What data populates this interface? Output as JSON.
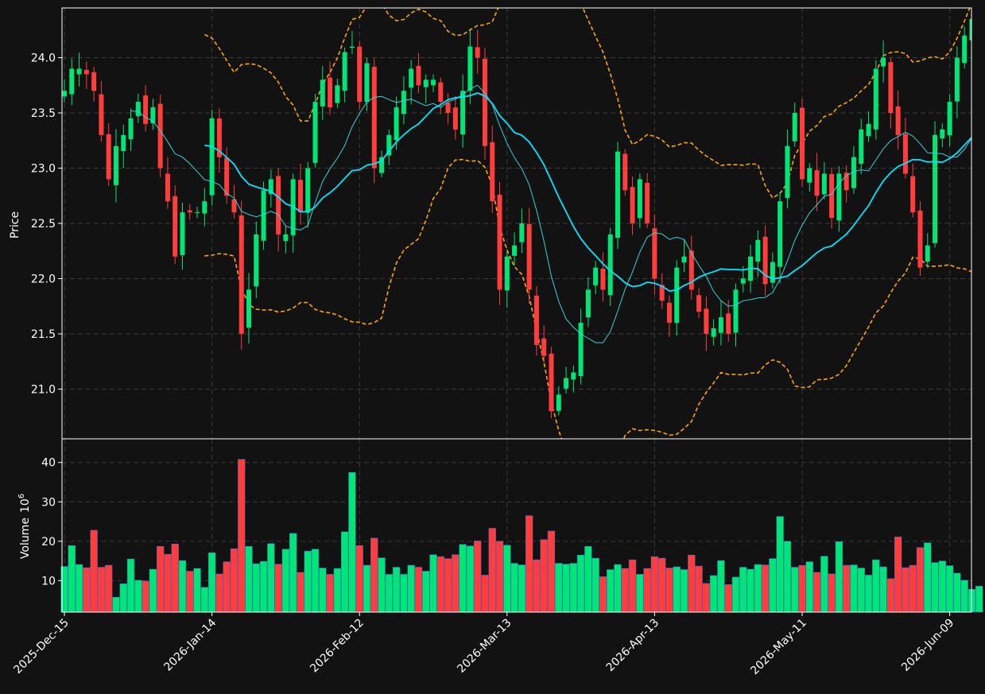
{
  "chart_data": [
    {
      "type": "candlestick",
      "panel": "price",
      "ylabel": "Price",
      "ylim": [
        20.55,
        24.45
      ],
      "yticks": [
        21.0,
        21.5,
        22.0,
        22.5,
        23.0,
        23.5,
        24.0
      ],
      "ytick_labels": [
        "21.0",
        "21.5",
        "22.0",
        "22.5",
        "23.0",
        "23.5",
        "24.0"
      ],
      "grid": true,
      "start_date": "2025-12-15",
      "session_count": 125,
      "colors": {
        "up": "#00e676",
        "down": "#ff3d3d",
        "ma_fast": "#39d0d8",
        "ma_slow": "#00e5ff",
        "bands": "#ffa500",
        "background": "#121212",
        "grid": "#3a3a3a"
      },
      "close_trace": [
        [
          0,
          23.7
        ],
        [
          1,
          23.9
        ],
        [
          2,
          23.9
        ],
        [
          3,
          23.85
        ],
        [
          4,
          23.7
        ],
        [
          5,
          23.3
        ],
        [
          6,
          22.9
        ],
        [
          7,
          23.2
        ],
        [
          8,
          23.3
        ],
        [
          9,
          23.45
        ],
        [
          10,
          23.6
        ],
        [
          11,
          23.4
        ],
        [
          12,
          23.55
        ],
        [
          13,
          23.0
        ],
        [
          14,
          22.7
        ],
        [
          15,
          22.2
        ],
        [
          16,
          22.6
        ],
        [
          17,
          22.6
        ],
        [
          18,
          22.6
        ],
        [
          19,
          22.7
        ],
        [
          20,
          23.45
        ],
        [
          21,
          23.1
        ],
        [
          22,
          22.75
        ],
        [
          23,
          22.6
        ],
        [
          24,
          21.5
        ],
        [
          25,
          21.9
        ],
        [
          26,
          22.4
        ],
        [
          27,
          22.8
        ],
        [
          28,
          22.9
        ],
        [
          29,
          22.4
        ],
        [
          30,
          22.4
        ],
        [
          31,
          22.9
        ],
        [
          32,
          22.6
        ],
        [
          33,
          23.0
        ],
        [
          34,
          23.6
        ],
        [
          35,
          23.8
        ],
        [
          36,
          23.55
        ],
        [
          37,
          23.75
        ],
        [
          38,
          24.05
        ],
        [
          39,
          24.1
        ],
        [
          40,
          23.6
        ],
        [
          41,
          23.95
        ],
        [
          42,
          23.0
        ],
        [
          43,
          23.1
        ],
        [
          44,
          23.3
        ],
        [
          45,
          23.55
        ],
        [
          46,
          23.7
        ],
        [
          47,
          23.9
        ],
        [
          48,
          23.75
        ],
        [
          49,
          23.8
        ],
        [
          50,
          23.8
        ],
        [
          51,
          23.6
        ],
        [
          52,
          23.5
        ],
        [
          53,
          23.35
        ],
        [
          54,
          23.7
        ],
        [
          55,
          24.1
        ],
        [
          56,
          24.0
        ],
        [
          57,
          23.2
        ],
        [
          58,
          22.7
        ],
        [
          59,
          21.9
        ],
        [
          60,
          22.2
        ],
        [
          61,
          22.3
        ],
        [
          62,
          22.5
        ],
        [
          63,
          21.9
        ],
        [
          64,
          21.4
        ],
        [
          65,
          21.3
        ],
        [
          66,
          20.8
        ],
        [
          67,
          20.95
        ],
        [
          68,
          21.1
        ],
        [
          69,
          21.15
        ],
        [
          70,
          21.6
        ],
        [
          71,
          21.9
        ],
        [
          72,
          22.1
        ],
        [
          73,
          21.9
        ],
        [
          74,
          22.4
        ],
        [
          75,
          23.15
        ],
        [
          76,
          22.8
        ],
        [
          77,
          22.5
        ],
        [
          78,
          22.9
        ],
        [
          79,
          22.5
        ],
        [
          80,
          22.0
        ],
        [
          81,
          21.8
        ],
        [
          82,
          21.6
        ],
        [
          83,
          22.1
        ],
        [
          84,
          22.2
        ],
        [
          85,
          21.9
        ],
        [
          86,
          21.7
        ],
        [
          87,
          21.5
        ],
        [
          88,
          21.55
        ],
        [
          89,
          21.65
        ],
        [
          90,
          21.5
        ],
        [
          91,
          21.9
        ],
        [
          92,
          22.0
        ],
        [
          93,
          22.2
        ],
        [
          94,
          22.35
        ],
        [
          95,
          21.95
        ],
        [
          96,
          22.15
        ],
        [
          97,
          22.7
        ],
        [
          98,
          23.2
        ],
        [
          99,
          23.5
        ],
        [
          100,
          22.9
        ],
        [
          101,
          23.0
        ],
        [
          102,
          22.75
        ],
        [
          103,
          22.95
        ],
        [
          104,
          22.55
        ],
        [
          105,
          22.95
        ],
        [
          106,
          22.8
        ],
        [
          107,
          23.1
        ],
        [
          108,
          23.35
        ],
        [
          109,
          23.4
        ],
        [
          110,
          23.9
        ],
        [
          111,
          24.0
        ],
        [
          112,
          23.5
        ],
        [
          113,
          23.3
        ],
        [
          114,
          22.95
        ],
        [
          115,
          22.6
        ],
        [
          116,
          22.1
        ],
        [
          117,
          22.3
        ],
        [
          118,
          23.3
        ],
        [
          119,
          23.35
        ],
        [
          120,
          23.6
        ],
        [
          121,
          24.0
        ],
        [
          122,
          24.2
        ],
        [
          123,
          24.35
        ],
        [
          124,
          24.4
        ]
      ]
    },
    {
      "type": "bar",
      "panel": "volume",
      "ylabel": "Volume",
      "yunit": "10^6",
      "ylim": [
        2,
        46
      ],
      "yticks": [
        10,
        20,
        30,
        40
      ],
      "ytick_labels": [
        "10",
        "20",
        "30",
        "40"
      ],
      "grid": true,
      "values": [
        13.6,
        18.9,
        14.1,
        13.3,
        22.8,
        13.4,
        13.9,
        5.8,
        9.2,
        15.5,
        10.1,
        9.9,
        12.9,
        18.7,
        16.7,
        19.3,
        15.1,
        12.4,
        13.1,
        8.3,
        17.1,
        11.7,
        14.8,
        18.1,
        40.8,
        18.7,
        14.3,
        14.9,
        19.4,
        14.2,
        18.0,
        22.0,
        12.1,
        17.5,
        18.0,
        13.2,
        11.6,
        13.1,
        22.4,
        37.5,
        18.9,
        13.9,
        20.8,
        15.8,
        11.6,
        13.4,
        11.6,
        13.9,
        13.4,
        12.4,
        16.6,
        16.1,
        15.6,
        16.6,
        19.2,
        18.8,
        20.1,
        11.4,
        23.3,
        20.0,
        19.0,
        14.4,
        14.0,
        26.5,
        15.3,
        20.4,
        22.6,
        14.4,
        14.2,
        14.4,
        16.5,
        18.7,
        15.7,
        11.0,
        12.8,
        14.1,
        13.1,
        15.3,
        11.6,
        13.1,
        16.1,
        15.7,
        13.2,
        13.5,
        12.8,
        16.5,
        13.7,
        9.3,
        11.3,
        15.1,
        9.0,
        10.9,
        13.4,
        12.9,
        14.1,
        14.0,
        15.6,
        26.3,
        20.0,
        13.4,
        13.9,
        14.8,
        12.1,
        16.2,
        11.7,
        19.9,
        13.9,
        14.0,
        13.2,
        11.4,
        15.3,
        13.5,
        10.5,
        21.1,
        13.3,
        13.9,
        18.4,
        19.6,
        14.6,
        15.0,
        13.8,
        11.9,
        10.1,
        7.8,
        8.6
      ],
      "xtick_labels": [
        "2025-Dec-15",
        "2026-Jan-14",
        "2026-Feb-12",
        "2026-Mar-13",
        "2026-Apr-13",
        "2026-May-11",
        "2026-Jun-09"
      ],
      "xtick_index": [
        0,
        20,
        40,
        60,
        80,
        100,
        120
      ]
    }
  ]
}
